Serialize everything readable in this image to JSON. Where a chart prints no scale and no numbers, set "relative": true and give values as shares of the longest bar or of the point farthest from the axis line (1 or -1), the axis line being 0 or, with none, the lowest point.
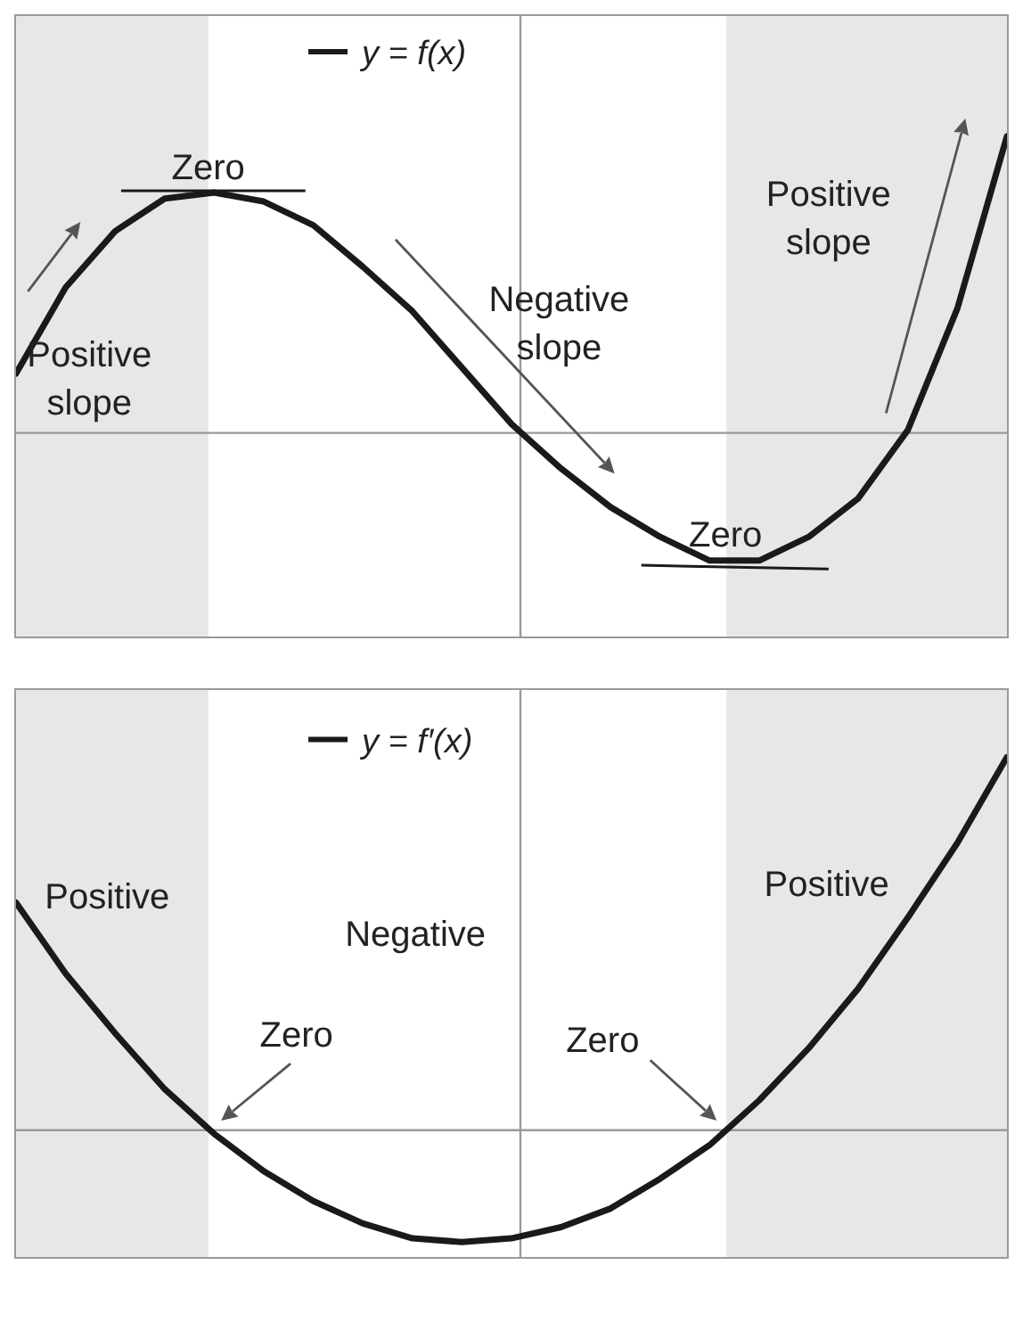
{
  "chart_data": [
    {
      "type": "line",
      "relative": true,
      "legend": "top",
      "line_style": "solid",
      "categories": [
        null,
        null,
        null,
        null,
        null,
        null,
        null,
        null,
        null,
        null,
        null,
        null,
        null,
        null,
        null,
        null,
        null,
        null,
        null,
        null,
        null
      ],
      "series": [
        {
          "name": "y = f(x)",
          "color": "#1a1a1a",
          "values": [
            0.2,
            0.49,
            0.68,
            0.79,
            0.81,
            0.78,
            0.7,
            0.56,
            0.41,
            0.22,
            0.03,
            -0.12,
            -0.25,
            -0.35,
            -0.43,
            -0.43,
            -0.35,
            -0.22,
            0.01,
            0.42,
            1.0
          ]
        }
      ],
      "annotations": [
        "Zero",
        "Positive slope",
        "Negative slope",
        "Zero",
        "Positive slope"
      ]
    },
    {
      "type": "line",
      "relative": true,
      "legend": "top",
      "line_style": "solid",
      "categories": [
        null,
        null,
        null,
        null,
        null,
        null,
        null,
        null,
        null,
        null,
        null,
        null,
        null,
        null,
        null,
        null,
        null,
        null,
        null,
        null,
        null
      ],
      "series": [
        {
          "name": "y = f′(x)",
          "color": "#1a1a1a",
          "values": [
            0.61,
            0.42,
            0.26,
            0.11,
            -0.01,
            -0.11,
            -0.19,
            -0.25,
            -0.29,
            -0.3,
            -0.29,
            -0.26,
            -0.21,
            -0.13,
            -0.04,
            0.08,
            0.22,
            0.38,
            0.57,
            0.77,
            1.0
          ]
        }
      ],
      "annotations": [
        "Positive",
        "Negative",
        "Positive",
        "Zero",
        "Zero"
      ]
    }
  ]
}
